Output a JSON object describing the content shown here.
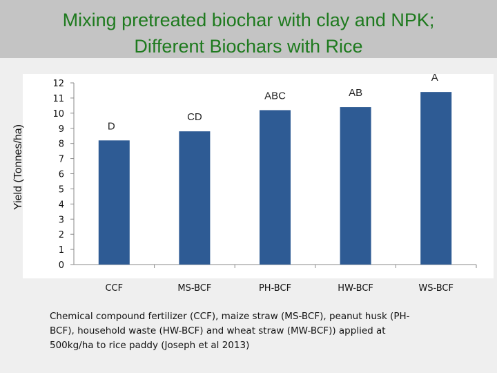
{
  "title_lines": [
    "Mixing pretreated biochar with  clay and NPK;",
    "Different Biochars with Rice"
  ],
  "caption_lines": [
    "Chemical compound fertilizer (CCF), maize straw (MS-BCF), peanut husk (PH-",
    "BCF), household waste (HW-BCF) and wheat straw (MW-BCF)) applied at",
    "500kg/ha to rice paddy (Joseph et al 2013)"
  ],
  "chart_data": {
    "type": "bar",
    "categories": [
      "CCF",
      "MS-BCF",
      "PH-BCF",
      "HW-BCF",
      "WS-BCF"
    ],
    "values": [
      8.2,
      8.8,
      10.2,
      10.4,
      11.4
    ],
    "data_labels": [
      "D",
      "CD",
      "ABC",
      "AB",
      "A"
    ],
    "ylabel": "Yield (Tonnes/ha)",
    "ylim": [
      0,
      12
    ],
    "yticks": [
      "0",
      "1",
      "2",
      "3",
      "4",
      "5",
      "6",
      "7",
      "8",
      "9",
      "10",
      "11",
      "12"
    ],
    "grid": false,
    "legend": "none",
    "bar_color": "#2e5b94"
  }
}
